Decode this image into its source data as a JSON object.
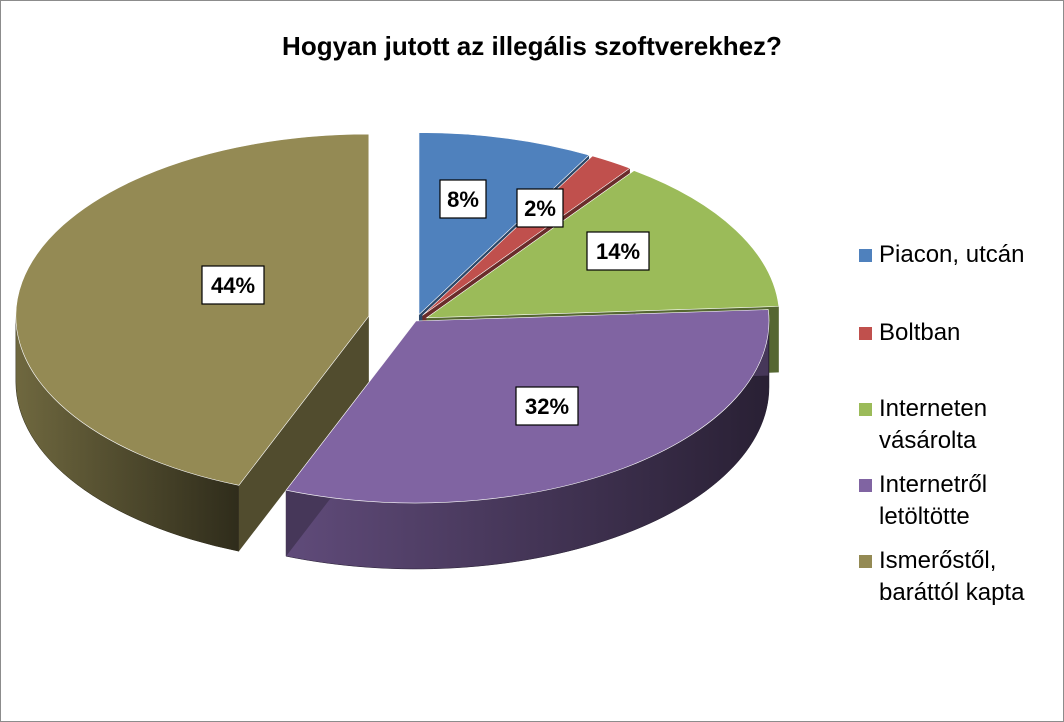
{
  "chart_data": {
    "type": "pie",
    "title": "Hogyan jutott az illegális szoftverekhez?",
    "categories": [
      "Piacon, utcán",
      "Boltban",
      "Interneten vásárolta",
      "Internetről letöltötte",
      "Ismerőstől, baráttól kapta"
    ],
    "values": [
      8,
      2,
      14,
      32,
      44
    ],
    "labels": [
      "8%",
      "2%",
      "14%",
      "32%",
      "44%"
    ],
    "colors": [
      "#4f81bd",
      "#c0504d",
      "#9bbb59",
      "#8064a2",
      "#948a54"
    ],
    "legend": "right",
    "style": "3d-exploded"
  }
}
